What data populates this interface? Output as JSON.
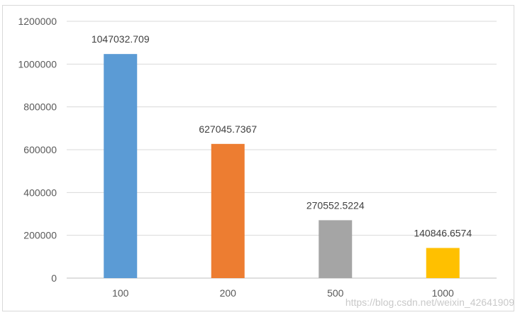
{
  "chart_data": {
    "type": "bar",
    "categories": [
      "100",
      "200",
      "500",
      "1000"
    ],
    "values": [
      1047032.709,
      627045.7367,
      270552.5224,
      140846.6574
    ],
    "data_labels": [
      "1047032.709",
      "627045.7367",
      "270552.5224",
      "140846.6574"
    ],
    "colors": [
      "#5b9bd5",
      "#ed7d31",
      "#a5a5a5",
      "#ffc000"
    ],
    "ylim": [
      0,
      1200000
    ],
    "yticks": [
      "0",
      "200000",
      "400000",
      "600000",
      "800000",
      "1000000",
      "1200000"
    ],
    "grid": true,
    "title": "",
    "xlabel": "",
    "ylabel": ""
  },
  "watermark": "https://blog.csdn.net/weixin_42641909"
}
